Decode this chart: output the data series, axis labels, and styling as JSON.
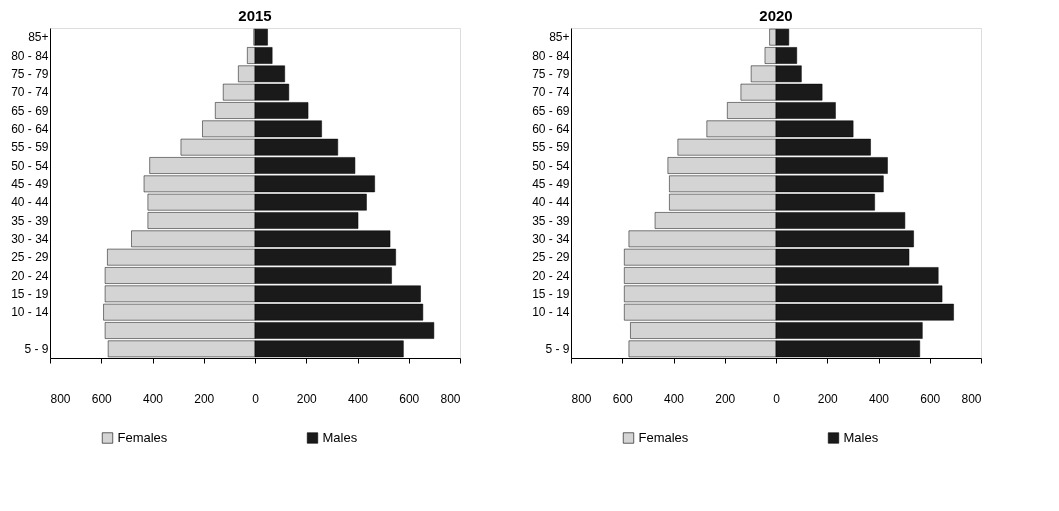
{
  "chart_data": [
    {
      "type": "bar",
      "title": "2015",
      "orientation": "horizontal",
      "stacked": true,
      "legend": "bottom",
      "categories": [
        "85+",
        "80 - 84",
        "75 - 79",
        "70 - 74",
        "65 - 69",
        "60 - 64",
        "55 - 59",
        "50 - 54",
        "45 - 49",
        "40 - 44",
        "35 - 39",
        "30 - 34",
        "25 - 29",
        "20 - 24",
        "15 - 19",
        "10 - 14",
        null,
        "5 - 9"
      ],
      "series": [
        {
          "name": "Females",
          "color": "#d4d4d4",
          "values": [
            -5,
            -30,
            -65,
            -124,
            -155,
            -205,
            -289,
            -411,
            -433,
            -418,
            -418,
            -482,
            -576,
            -585,
            -585,
            -591,
            -585,
            -573
          ]
        },
        {
          "name": "Males",
          "color": "#1a1a1a",
          "values": [
            49,
            67,
            116,
            132,
            207,
            260,
            323,
            390,
            467,
            435,
            402,
            527,
            549,
            533,
            646,
            655,
            698,
            579
          ]
        }
      ],
      "xlim": [
        -800,
        800
      ],
      "xticks": [
        {
          "value": -800,
          "label": "800"
        },
        {
          "value": -600,
          "label": "600"
        },
        {
          "value": -400,
          "label": "400"
        },
        {
          "value": -200,
          "label": "200"
        },
        0,
        200,
        400,
        600,
        800
      ]
    },
    {
      "type": "bar",
      "title": "2020",
      "orientation": "horizontal",
      "stacked": true,
      "legend": "bottom",
      "categories": [
        "85+",
        "80 - 84",
        "75 - 79",
        "70 - 74",
        "65 - 69",
        "60 - 64",
        "55 - 59",
        "50 - 54",
        "45 - 49",
        "40 - 44",
        "35 - 39",
        "30 - 34",
        "25 - 29",
        "20 - 24",
        "15 - 19",
        "10 - 14",
        null,
        "5 - 9"
      ],
      "series": [
        {
          "name": "Females",
          "color": "#d4d4d4",
          "values": [
            -25,
            -43,
            -97,
            -137,
            -190,
            -270,
            -383,
            -422,
            -416,
            -416,
            -472,
            -574,
            -592,
            -592,
            -592,
            -592,
            -568,
            -574
          ]
        },
        {
          "name": "Males",
          "color": "#1a1a1a",
          "values": [
            50,
            81,
            99,
            180,
            232,
            301,
            369,
            435,
            419,
            385,
            503,
            537,
            519,
            633,
            648,
            693,
            571,
            561
          ]
        }
      ],
      "xlim": [
        -800,
        800
      ],
      "xticks": [
        {
          "value": -800,
          "label": "800"
        },
        {
          "value": -600,
          "label": "600"
        },
        {
          "value": -400,
          "label": "400"
        },
        {
          "value": -200,
          "label": "200"
        },
        0,
        200,
        400,
        600,
        800
      ]
    }
  ]
}
